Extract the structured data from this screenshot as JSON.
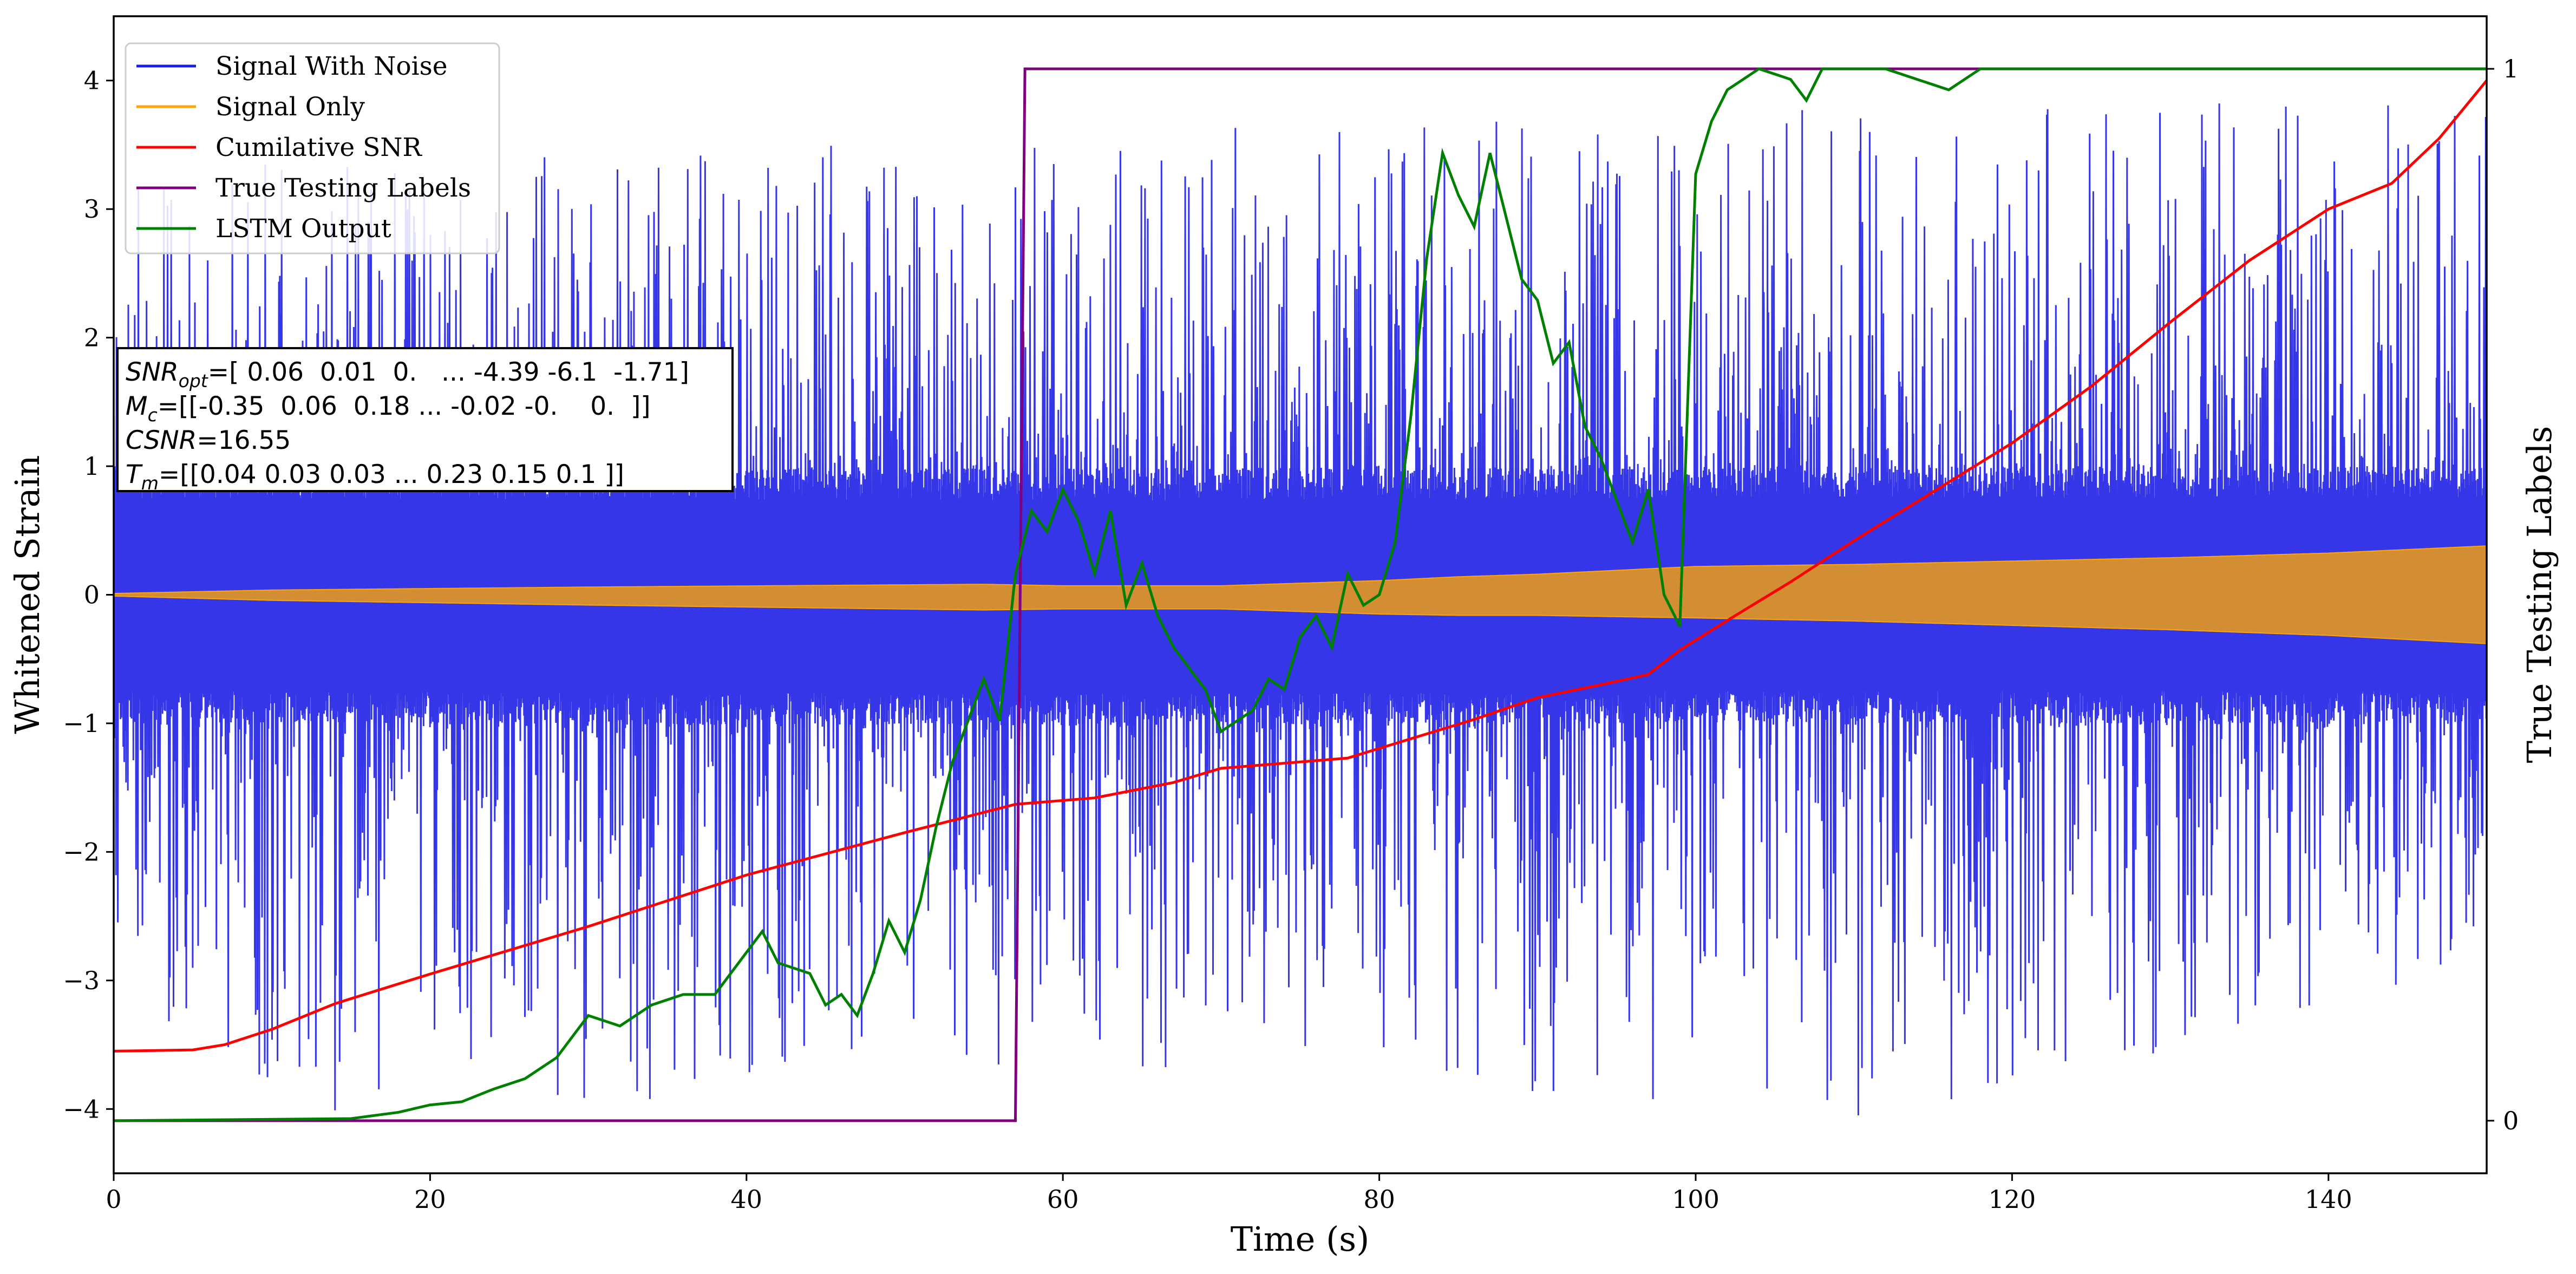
{
  "chart_data": {
    "type": "line",
    "xlabel": "Time (s)",
    "ylabel": "Whitened Strain",
    "y2label": "True Testing Labels",
    "xlim": [
      0,
      150
    ],
    "ylim": [
      -4.5,
      4.5
    ],
    "y2lim": [
      -0.05,
      1.05
    ],
    "grid": false,
    "legend_position": "upper-left",
    "x_ticks": [
      0,
      20,
      40,
      60,
      80,
      100,
      120,
      140
    ],
    "y_ticks": [
      -4,
      -3,
      -2,
      -1,
      0,
      1,
      2,
      3,
      4
    ],
    "y2_ticks": [
      0,
      1
    ],
    "series": [
      {
        "name": "Signal With Noise",
        "color": "#1a1ae6",
        "style": "dense-noise",
        "band_center": [
          [
            0,
            0
          ],
          [
            60,
            -0.02
          ],
          [
            100,
            0.0
          ],
          [
            150,
            0.0
          ]
        ],
        "band_half_width": 1.0,
        "spike_max": [
          [
            0,
            3.4
          ],
          [
            40,
            3.5
          ],
          [
            80,
            3.7
          ],
          [
            110,
            3.8
          ],
          [
            150,
            3.9
          ]
        ],
        "spike_min": [
          [
            0,
            -2.9
          ],
          [
            10,
            -4.2
          ],
          [
            60,
            -3.6
          ],
          [
            88,
            -3.9
          ],
          [
            110,
            -4.1
          ],
          [
            150,
            -3.0
          ]
        ]
      },
      {
        "name": "Signal Only",
        "color": "#ffa500",
        "style": "chirp-envelope",
        "envelope": [
          [
            0,
            0.01
          ],
          [
            10,
            0.04
          ],
          [
            30,
            0.07
          ],
          [
            55,
            0.1
          ],
          [
            60,
            0.09
          ],
          [
            70,
            0.09
          ],
          [
            80,
            0.13
          ],
          [
            85,
            0.15
          ],
          [
            90,
            0.16
          ],
          [
            95,
            0.18
          ],
          [
            100,
            0.2
          ],
          [
            110,
            0.22
          ],
          [
            120,
            0.25
          ],
          [
            130,
            0.28
          ],
          [
            140,
            0.32
          ],
          [
            150,
            0.38
          ]
        ],
        "center": [
          [
            0,
            0
          ],
          [
            60,
            -0.02
          ],
          [
            80,
            -0.02
          ],
          [
            100,
            0.02
          ],
          [
            150,
            0
          ]
        ]
      },
      {
        "name": "Cumilative SNR",
        "color": "#ff0000",
        "axis": "left",
        "points": [
          [
            0,
            -3.55
          ],
          [
            5,
            -3.54
          ],
          [
            7,
            -3.5
          ],
          [
            10,
            -3.38
          ],
          [
            14,
            -3.18
          ],
          [
            20,
            -2.95
          ],
          [
            30,
            -2.58
          ],
          [
            40,
            -2.18
          ],
          [
            50,
            -1.85
          ],
          [
            57,
            -1.63
          ],
          [
            62,
            -1.58
          ],
          [
            67,
            -1.46
          ],
          [
            70,
            -1.35
          ],
          [
            75,
            -1.3
          ],
          [
            78,
            -1.27
          ],
          [
            82,
            -1.12
          ],
          [
            86,
            -0.97
          ],
          [
            90,
            -0.8
          ],
          [
            94,
            -0.7
          ],
          [
            97,
            -0.62
          ],
          [
            99,
            -0.43
          ],
          [
            102,
            -0.2
          ],
          [
            106,
            0.1
          ],
          [
            110,
            0.42
          ],
          [
            115,
            0.8
          ],
          [
            120,
            1.18
          ],
          [
            125,
            1.62
          ],
          [
            130,
            2.12
          ],
          [
            135,
            2.6
          ],
          [
            140,
            3.0
          ],
          [
            144,
            3.2
          ],
          [
            147,
            3.55
          ],
          [
            150,
            4.0
          ]
        ]
      },
      {
        "name": "True Testing Labels",
        "color": "#800080",
        "axis": "right",
        "points": [
          [
            0,
            0
          ],
          [
            57,
            0
          ],
          [
            57.6,
            1
          ],
          [
            150,
            1
          ]
        ]
      },
      {
        "name": "LSTM Output",
        "color": "#008000",
        "axis": "right",
        "points": [
          [
            0,
            0
          ],
          [
            15,
            0.002
          ],
          [
            18,
            0.008
          ],
          [
            20,
            0.015
          ],
          [
            22,
            0.018
          ],
          [
            24,
            0.03
          ],
          [
            26,
            0.04
          ],
          [
            28,
            0.06
          ],
          [
            30,
            0.1
          ],
          [
            32,
            0.09
          ],
          [
            34,
            0.11
          ],
          [
            36,
            0.12
          ],
          [
            38,
            0.12
          ],
          [
            40,
            0.16
          ],
          [
            41,
            0.18
          ],
          [
            42,
            0.15
          ],
          [
            44,
            0.14
          ],
          [
            45,
            0.11
          ],
          [
            46,
            0.12
          ],
          [
            47,
            0.1
          ],
          [
            48,
            0.14
          ],
          [
            49,
            0.19
          ],
          [
            50,
            0.16
          ],
          [
            51,
            0.21
          ],
          [
            52,
            0.28
          ],
          [
            53,
            0.34
          ],
          [
            54,
            0.38
          ],
          [
            55,
            0.42
          ],
          [
            56,
            0.38
          ],
          [
            57,
            0.52
          ],
          [
            58,
            0.58
          ],
          [
            59,
            0.56
          ],
          [
            60,
            0.6
          ],
          [
            61,
            0.57
          ],
          [
            62,
            0.52
          ],
          [
            63,
            0.58
          ],
          [
            64,
            0.49
          ],
          [
            65,
            0.53
          ],
          [
            66,
            0.48
          ],
          [
            67,
            0.45
          ],
          [
            68,
            0.43
          ],
          [
            69,
            0.41
          ],
          [
            70,
            0.37
          ],
          [
            71,
            0.38
          ],
          [
            72,
            0.39
          ],
          [
            73,
            0.42
          ],
          [
            74,
            0.41
          ],
          [
            75,
            0.46
          ],
          [
            76,
            0.48
          ],
          [
            77,
            0.45
          ],
          [
            78,
            0.52
          ],
          [
            79,
            0.49
          ],
          [
            80,
            0.5
          ],
          [
            81,
            0.55
          ],
          [
            82,
            0.67
          ],
          [
            83,
            0.82
          ],
          [
            84,
            0.92
          ],
          [
            85,
            0.88
          ],
          [
            86,
            0.85
          ],
          [
            87,
            0.92
          ],
          [
            88,
            0.86
          ],
          [
            89,
            0.8
          ],
          [
            90,
            0.78
          ],
          [
            91,
            0.72
          ],
          [
            92,
            0.74
          ],
          [
            93,
            0.66
          ],
          [
            94,
            0.63
          ],
          [
            95,
            0.59
          ],
          [
            96,
            0.55
          ],
          [
            97,
            0.6
          ],
          [
            98,
            0.5
          ],
          [
            99,
            0.47
          ],
          [
            100,
            0.9
          ],
          [
            101,
            0.95
          ],
          [
            102,
            0.98
          ],
          [
            103,
            0.99
          ],
          [
            104,
            1.0
          ],
          [
            106,
            0.99
          ],
          [
            107,
            0.97
          ],
          [
            108,
            1.0
          ],
          [
            112,
            1.0
          ],
          [
            114,
            0.99
          ],
          [
            116,
            0.98
          ],
          [
            118,
            1.0
          ],
          [
            150,
            1.0
          ]
        ]
      }
    ],
    "annotation": {
      "lines": [
        {
          "label": "SNR",
          "sub": "opt",
          "value": "=[ 0.06  0.01  0.   ... -4.39 -6.1  -1.71]"
        },
        {
          "label": "M",
          "sub": "c",
          "value": "=[[-0.35  0.06  0.18 ... -0.02 -0.    0.  ]]"
        },
        {
          "label": "CSNR",
          "sub": "",
          "value": "=16.55"
        },
        {
          "label": "T",
          "sub": "m",
          "value": "=[[0.04 0.03 0.03 ... 0.23 0.15 0.1 ]]"
        }
      ]
    }
  }
}
